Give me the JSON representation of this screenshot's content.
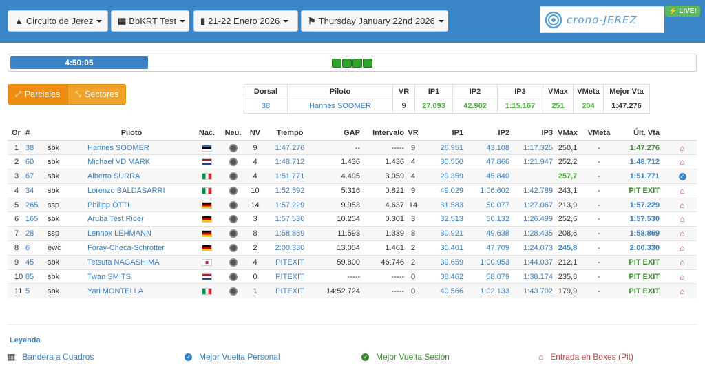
{
  "toolbar": {
    "circuit": "Circuito de Jerez",
    "session": "BbKRT Test",
    "dates": "21-22 Enero 2026",
    "day": "Thursday January 22nd 2026"
  },
  "logo": {
    "text": "crono-JEREZ"
  },
  "live": "LIVE!",
  "progress": {
    "time": "4:50:05",
    "fraction": 0.2
  },
  "view_buttons": {
    "parciales": "Parciales",
    "sectores": "Sectores"
  },
  "best": {
    "headers": [
      "Dorsal",
      "Piloto",
      "VR",
      "IP1",
      "IP2",
      "IP3",
      "VMax",
      "VMeta",
      "Mejor Vta"
    ],
    "values": [
      "38",
      "Hannes SOOMER",
      "9",
      "27.093",
      "42.902",
      "1:15.167",
      "251",
      "204",
      "1:47.276"
    ]
  },
  "table": {
    "headers": [
      "Or",
      "#",
      "",
      "Piloto",
      "Nac.",
      "Neu.",
      "NV",
      "Tiempo",
      "GAP",
      "Intervalo",
      "VR",
      "IP1",
      "IP2",
      "IP3",
      "VMax",
      "VMeta",
      "Últ. Vta",
      ""
    ],
    "rows": [
      {
        "or": "1",
        "num": "38",
        "cls": "sbk",
        "name": "Hannes SOOMER",
        "nat": "EST",
        "nv": "9",
        "time": "1:47.276",
        "gap": "--",
        "int": "-----",
        "vr": "9",
        "ip1": "26.951",
        "ip2": "43.108",
        "ip3": "1:17.325",
        "vmax": "250,1",
        "vmeta": "-",
        "last": "1:47.276",
        "lastType": "green",
        "vmaxType": "",
        "icon": "pit-icon"
      },
      {
        "or": "2",
        "num": "60",
        "cls": "sbk",
        "name": "Michael VD MARK",
        "nat": "NED",
        "nv": "4",
        "time": "1:48.712",
        "gap": "1.436",
        "int": "1.436",
        "vr": "4",
        "ip1": "30.550",
        "ip2": "47.866",
        "ip3": "1:21.947",
        "vmax": "252,2",
        "vmeta": "-",
        "last": "1:48.712",
        "lastType": "blue",
        "vmaxType": "",
        "icon": "pit-icon"
      },
      {
        "or": "3",
        "num": "67",
        "cls": "sbk",
        "name": "Alberto SURRA",
        "nat": "ITA",
        "nv": "4",
        "time": "1:51.771",
        "gap": "4.495",
        "int": "3.059",
        "vr": "4",
        "ip1": "29.359",
        "ip2": "45.840",
        "ip3": "",
        "vmax": "257,7",
        "vmeta": "-",
        "last": "1:51.771",
        "lastType": "blue",
        "vmaxType": "green",
        "icon": "check-icon"
      },
      {
        "or": "4",
        "num": "34",
        "cls": "sbk",
        "name": "Lorenzo BALDASARRI",
        "nat": "ITA",
        "nv": "10",
        "time": "1:52.592",
        "gap": "5.316",
        "int": "0.821",
        "vr": "9",
        "ip1": "49.029",
        "ip2": "1:06.602",
        "ip3": "1:42.789",
        "vmax": "243,1",
        "vmeta": "-",
        "last": "PIT EXIT",
        "lastType": "pit",
        "vmaxType": "",
        "icon": "pit-icon"
      },
      {
        "or": "5",
        "num": "265",
        "cls": "ssp",
        "name": "Philipp ÖTTL",
        "nat": "GER",
        "nv": "14",
        "time": "1:57.229",
        "gap": "9.953",
        "int": "4.637",
        "vr": "14",
        "ip1": "31.583",
        "ip2": "50.077",
        "ip3": "1:27.067",
        "vmax": "213,9",
        "vmeta": "-",
        "last": "1:57.229",
        "lastType": "blue",
        "vmaxType": "",
        "icon": "pit-icon"
      },
      {
        "or": "6",
        "num": "165",
        "cls": "sbk",
        "name": "Aruba Test Rider",
        "nat": "GER",
        "nv": "3",
        "time": "1:57.530",
        "gap": "10.254",
        "int": "0.301",
        "vr": "3",
        "ip1": "32.513",
        "ip2": "50.132",
        "ip3": "1:26.499",
        "vmax": "252,6",
        "vmeta": "-",
        "last": "1:57.530",
        "lastType": "blue",
        "vmaxType": "",
        "icon": "pit-icon"
      },
      {
        "or": "7",
        "num": "28",
        "cls": "ssp",
        "name": "Lennox LEHMANN",
        "nat": "GER",
        "nv": "8",
        "time": "1:58.869",
        "gap": "11.593",
        "int": "1.339",
        "vr": "8",
        "ip1": "30.921",
        "ip2": "49.638",
        "ip3": "1:28.435",
        "vmax": "208,6",
        "vmeta": "-",
        "last": "1:58.869",
        "lastType": "blue",
        "vmaxType": "",
        "icon": "pit-icon"
      },
      {
        "or": "8",
        "num": "6",
        "cls": "ewc",
        "name": "Foray-Checa-Schrotter",
        "nat": "GER",
        "nv": "2",
        "time": "2:00.330",
        "gap": "13.054",
        "int": "1.461",
        "vr": "2",
        "ip1": "30.401",
        "ip2": "47.709",
        "ip3": "1:24.073",
        "vmax": "245,8",
        "vmeta": "-",
        "last": "2:00.330",
        "lastType": "blue",
        "vmaxType": "blue",
        "icon": "pit-icon"
      },
      {
        "or": "9",
        "num": "45",
        "cls": "sbk",
        "name": "Tetsuta NAGASHIMA",
        "nat": "JPN",
        "nv": "4",
        "time": "PITEXIT",
        "gap": "59.800",
        "int": "46.746",
        "vr": "2",
        "ip1": "39.659",
        "ip2": "1:00.953",
        "ip3": "1:44.037",
        "vmax": "212,1",
        "vmeta": "-",
        "last": "PIT EXIT",
        "lastType": "pit",
        "vmaxType": "",
        "icon": "pit-icon"
      },
      {
        "or": "10",
        "num": "85",
        "cls": "sbk",
        "name": "Twan SMITS",
        "nat": "NED",
        "nv": "0",
        "time": "PITEXIT",
        "gap": "-----",
        "int": "-----",
        "vr": "0",
        "ip1": "38.462",
        "ip2": "58.079",
        "ip3": "1:38.174",
        "vmax": "235,8",
        "vmeta": "-",
        "last": "PIT EXIT",
        "lastType": "pit",
        "vmaxType": "",
        "icon": "pit-icon"
      },
      {
        "or": "11",
        "num": "5",
        "cls": "sbk",
        "name": "Yari MONTELLA",
        "nat": "ITA",
        "nv": "1",
        "time": "PITEXIT",
        "gap": "14:52.724",
        "int": "-----",
        "vr": "0",
        "ip1": "40.566",
        "ip2": "1:02.133",
        "ip3": "1:43.702",
        "vmax": "179,9",
        "vmeta": "-",
        "last": "PIT EXIT",
        "lastType": "pit",
        "vmaxType": "",
        "icon": "pit-icon"
      }
    ]
  },
  "legend": {
    "title": "Leyenda",
    "items": [
      "Bandera a Cuadros",
      "Mejor Vuelta Personal",
      "Mejor Vuelta Sesión",
      "Entrada en Boxes (Pit)"
    ]
  },
  "colors": {
    "header": "#3a86c7",
    "accent": "#f0a22a",
    "green": "#3c8d2f",
    "blue": "#3a7fc2",
    "pit": "#b94444"
  }
}
